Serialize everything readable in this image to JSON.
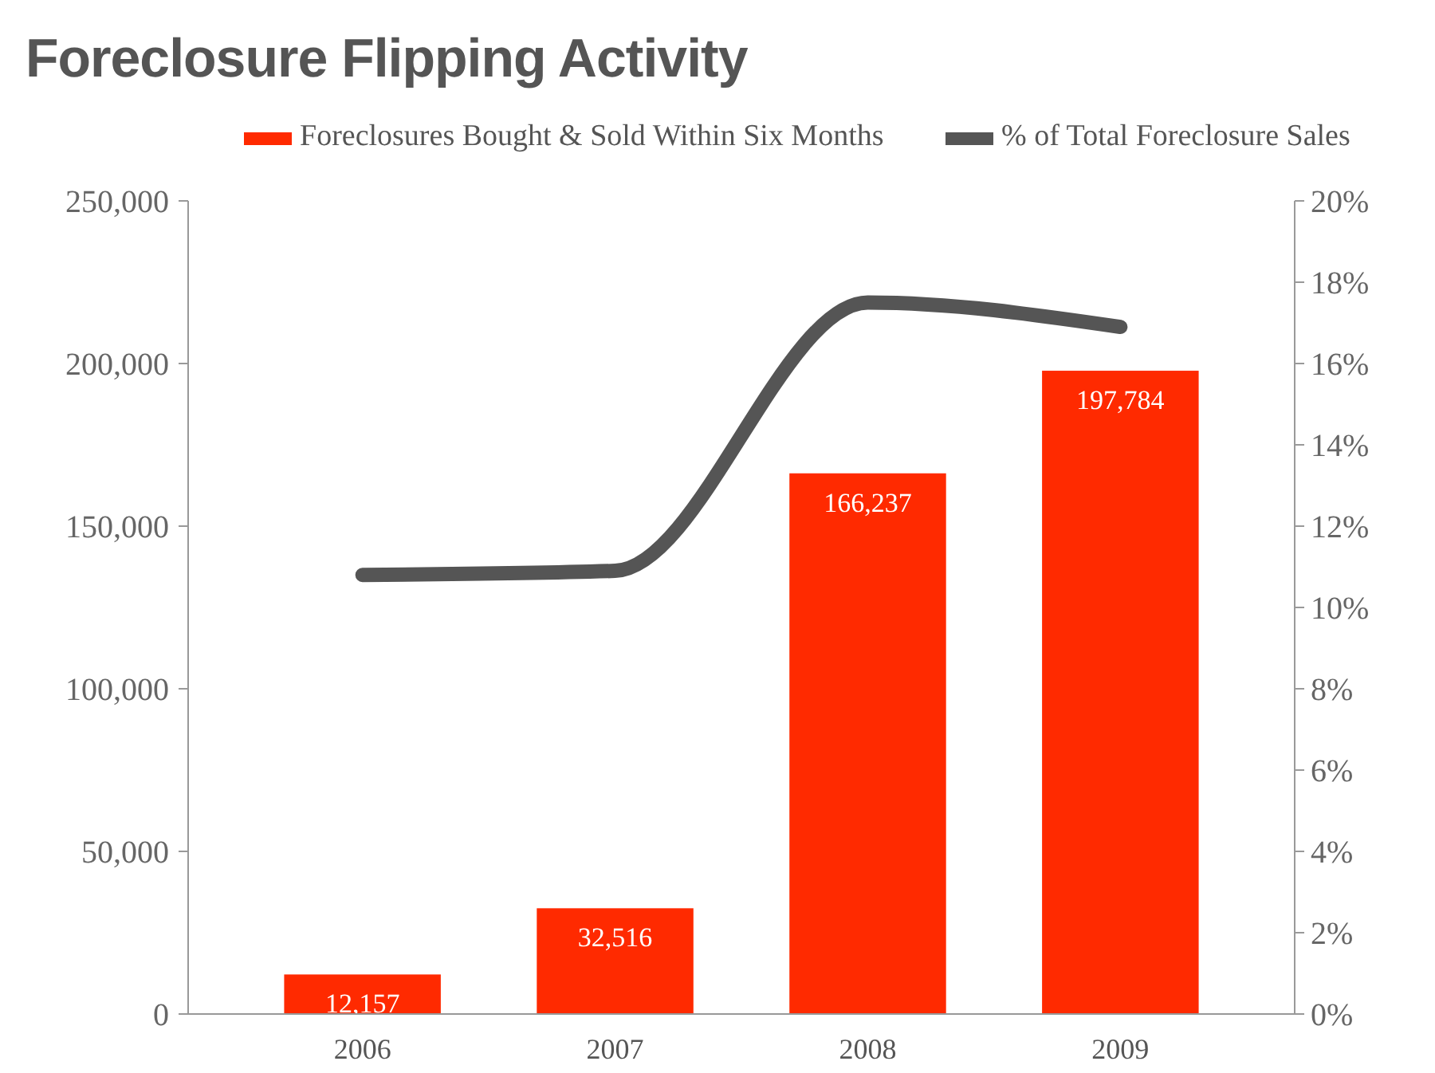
{
  "chart_data": {
    "type": "bar",
    "title": "Foreclosure Flipping Activity",
    "categories": [
      "2006",
      "2007",
      "2008",
      "2009"
    ],
    "series": [
      {
        "name": "Foreclosures Bought & Sold Within Six Months",
        "color": "#ff2a00",
        "values": [
          12157,
          32516,
          166237,
          197784
        ],
        "value_labels": [
          "12,157",
          "32,516",
          "166,237",
          "197,784"
        ]
      },
      {
        "name": "% of Total Foreclosure Sales",
        "type": "line",
        "axis": "y2",
        "color": "#555555",
        "values": [
          10.8,
          10.9,
          17.5,
          16.9
        ]
      }
    ],
    "ylim": [
      0,
      250000
    ],
    "yticks": [
      {
        "value": 0,
        "label": "0"
      },
      {
        "value": 50000,
        "label": "50,000"
      },
      {
        "value": 100000,
        "label": "100,000"
      },
      {
        "value": 150000,
        "label": "150,000"
      },
      {
        "value": 200000,
        "label": "200,000"
      },
      {
        "value": 250000,
        "label": "250,000"
      }
    ],
    "y2lim": [
      0,
      20
    ],
    "y2ticks": [
      {
        "value": 0,
        "label": "0%"
      },
      {
        "value": 2,
        "label": "2%"
      },
      {
        "value": 4,
        "label": "4%"
      },
      {
        "value": 6,
        "label": "6%"
      },
      {
        "value": 8,
        "label": "8%"
      },
      {
        "value": 10,
        "label": "10%"
      },
      {
        "value": 12,
        "label": "12%"
      },
      {
        "value": 14,
        "label": "14%"
      },
      {
        "value": 16,
        "label": "16%"
      },
      {
        "value": 18,
        "label": "18%"
      },
      {
        "value": 20,
        "label": "20%"
      }
    ],
    "legend": "top",
    "line_style": "solid",
    "marker": "none"
  }
}
